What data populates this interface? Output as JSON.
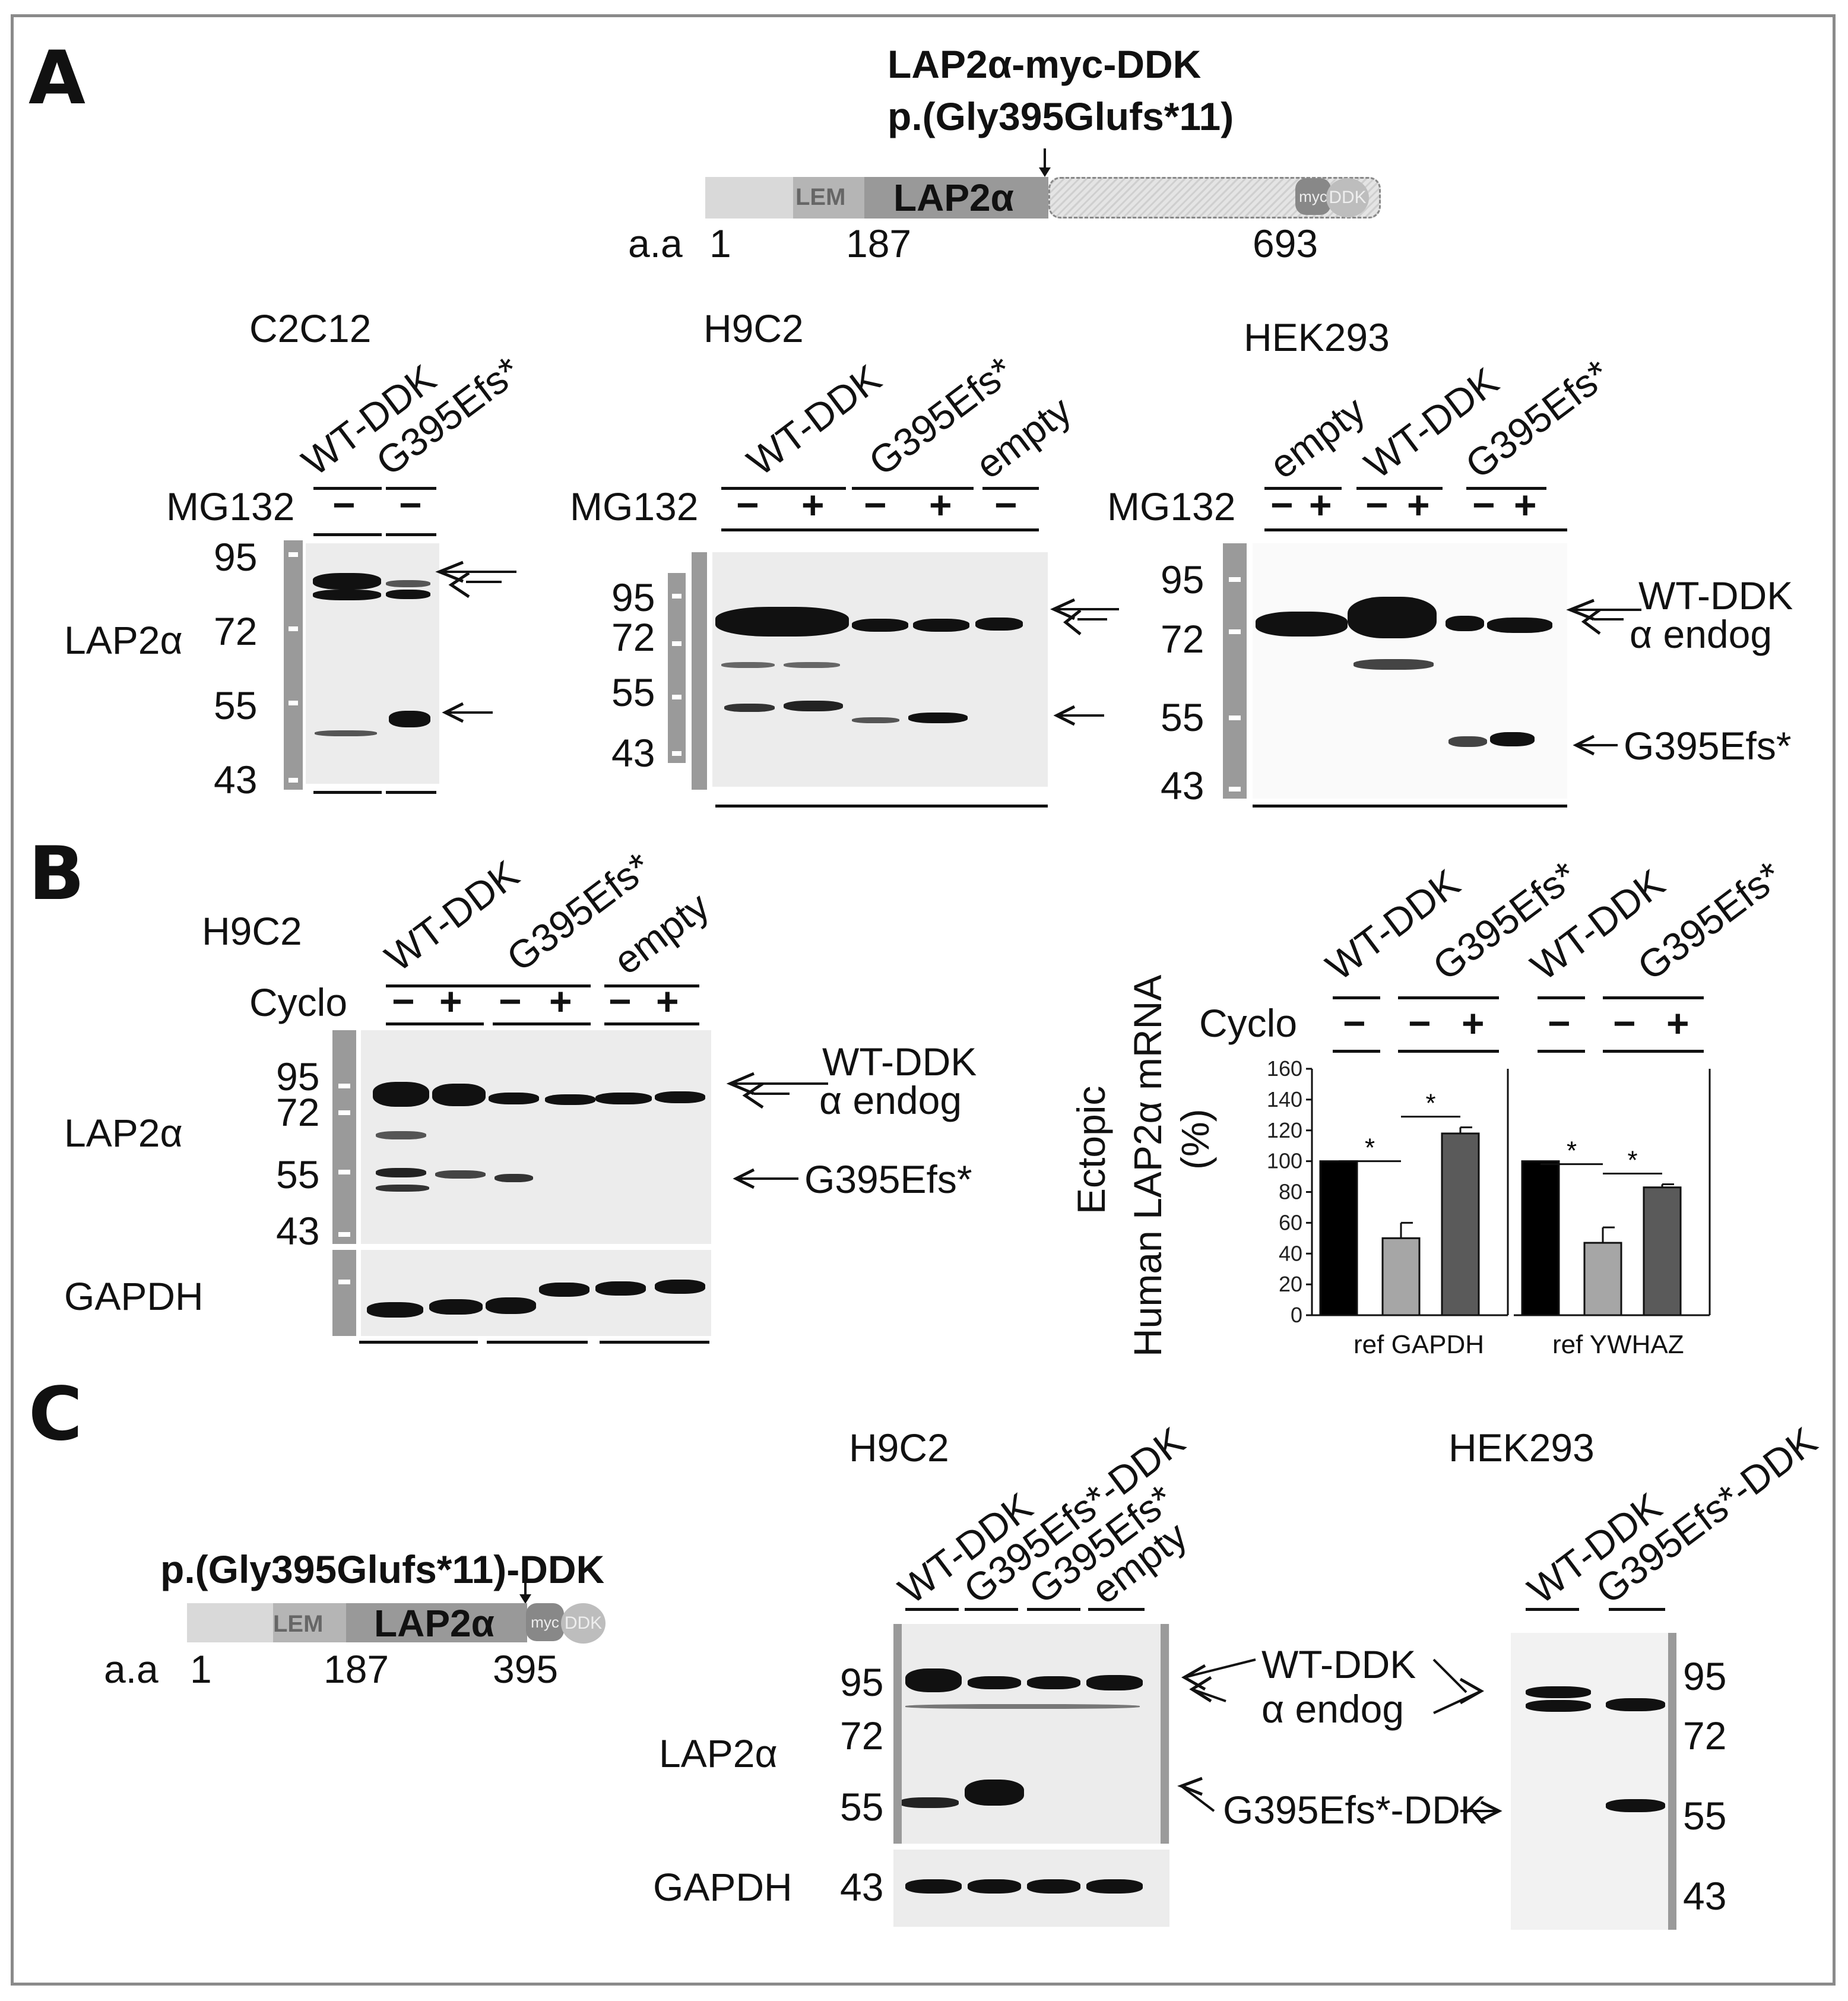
{
  "panels": {
    "a": "A",
    "b": "B",
    "c": "C"
  },
  "construct_a": {
    "title_line1": "LAP2α-myc-DDK",
    "title_line2": "p.(Gly395Glufs*11)",
    "lem": "LEM",
    "domain": "LAP2α",
    "myc": "myc",
    "ddk": "DDK",
    "aa_label": "a.a",
    "aa_1": "1",
    "aa_187": "187",
    "aa_end": "693"
  },
  "blot_c2c12": {
    "cell": "C2C12",
    "lanes": [
      "WT-DDK",
      "G395Efs*"
    ],
    "treatment": "MG132",
    "signs": [
      "−",
      "−"
    ],
    "markers": [
      "95",
      "72",
      "55",
      "43"
    ],
    "protein": "LAP2α"
  },
  "blot_h9c2_a": {
    "cell": "H9C2",
    "lanes": [
      "WT-DDK",
      "G395Efs*",
      "empty"
    ],
    "treatment": "MG132",
    "signs": [
      "−",
      "+",
      "−",
      "+",
      "−"
    ],
    "markers": [
      "95",
      "72",
      "55",
      "43"
    ]
  },
  "blot_hek_a": {
    "cell": "HEK293",
    "lanes": [
      "empty",
      "WT-DDK",
      "G395Efs*"
    ],
    "treatment": "MG132",
    "signs": [
      "−",
      "+",
      "−",
      "+",
      "−",
      "+"
    ],
    "markers": [
      "95",
      "72",
      "55",
      "43"
    ],
    "labels": [
      "WT-DDK",
      "α endog",
      "G395Efs*"
    ]
  },
  "blot_b": {
    "cell": "H9C2",
    "lanes": [
      "WT-DDK",
      "G395Efs*",
      "empty"
    ],
    "treatment": "Cyclo",
    "signs": [
      "−",
      "+",
      "−",
      "+",
      "−",
      "+"
    ],
    "markers": [
      "95",
      "72",
      "55",
      "43"
    ],
    "protein": "LAP2α",
    "loading": "GAPDH",
    "labels": [
      "WT-DDK",
      "α endog",
      "G395Efs*"
    ]
  },
  "chart_data": {
    "type": "bar",
    "ylabel_line1": "Ectopic",
    "ylabel_line2": "Human LAP2α mRNA",
    "ylabel_line3": "(%)",
    "ylim": [
      0,
      160
    ],
    "yticks": [
      "0",
      "20",
      "40",
      "60",
      "80",
      "100",
      "120",
      "140",
      "160"
    ],
    "lanes": [
      "WT-DDK",
      "G395Efs*"
    ],
    "treatment": "Cyclo",
    "signs": [
      "−",
      "−",
      "+"
    ],
    "significance": "*",
    "groups": [
      {
        "name": "ref GAPDH",
        "values": [
          100,
          50,
          118
        ],
        "errors": [
          0,
          10,
          4
        ]
      },
      {
        "name": "ref YWHAZ",
        "values": [
          100,
          47,
          83
        ],
        "errors": [
          0,
          10,
          2
        ]
      }
    ],
    "colors": [
      "#000000",
      "#a6a6a6",
      "#5a5a5a"
    ]
  },
  "construct_c": {
    "title": "p.(Gly395Glufs*11)-DDK",
    "lem": "LEM",
    "domain": "LAP2α",
    "myc": "myc",
    "ddk": "DDK",
    "aa_label": "a.a",
    "aa_1": "1",
    "aa_187": "187",
    "aa_end": "395"
  },
  "blot_c_h9c2": {
    "cell": "H9C2",
    "lanes": [
      "WT-DDK",
      "G395Efs*-DDK",
      "G395Efs*",
      "empty"
    ],
    "markers": [
      "95",
      "72",
      "55",
      "43"
    ],
    "protein": "LAP2α",
    "loading": "GAPDH",
    "labels": [
      "WT-DDK",
      "α endog",
      "G395Efs*-DDK"
    ]
  },
  "blot_c_hek": {
    "cell": "HEK293",
    "lanes": [
      "WT-DDK",
      "G395Efs*-DDK"
    ],
    "markers": [
      "95",
      "72",
      "55",
      "43"
    ]
  }
}
